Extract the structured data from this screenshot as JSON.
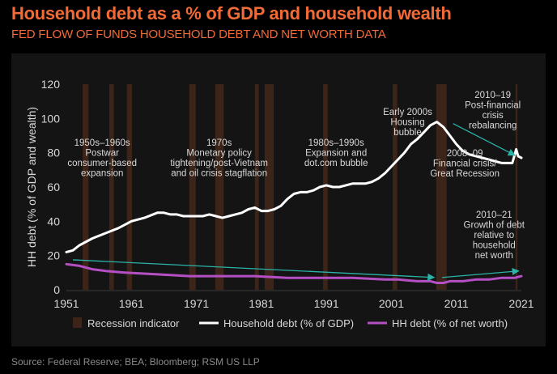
{
  "header": {
    "title": "Household debt as a % of GDP and household wealth",
    "subtitle": "FED FLOW OF FUNDS HOUSEHOLD DEBT AND NET WORTH DATA",
    "source": "Source: Federal Reserve; BEA; Bloomberg; RSM US LLP"
  },
  "colors": {
    "title": "#f26a36",
    "accent": "#f26a36",
    "recession": "#3d2418",
    "debt_gdp": "#ffffff",
    "debt_networth": "#b54fc4",
    "arrow": "#2bb3a8",
    "text": "#d8d8d8"
  },
  "chart_data": {
    "type": "line",
    "ylabel": "HH debt (% of GDP and wealth)",
    "xlim": [
      1951,
      2021
    ],
    "ylim": [
      0,
      120
    ],
    "x_ticks": [
      1951,
      1961,
      1971,
      1981,
      1991,
      2001,
      2011,
      2021
    ],
    "y_ticks": [
      0,
      20,
      40,
      60,
      80,
      100,
      120
    ],
    "legend": [
      "Recession indicator",
      "Household debt (% of GDP)",
      "HH debt (% of net worth)"
    ],
    "recessions": [
      [
        1953.5,
        1954.4
      ],
      [
        1957.6,
        1958.3
      ],
      [
        1960.3,
        1961.1
      ],
      [
        1969.9,
        1970.9
      ],
      [
        1973.9,
        1975.2
      ],
      [
        1980.0,
        1980.6
      ],
      [
        1981.5,
        1982.9
      ],
      [
        1990.5,
        1991.2
      ],
      [
        2001.2,
        2001.9
      ],
      [
        2007.9,
        2009.5
      ],
      [
        2020.1,
        2020.4
      ]
    ],
    "series": [
      {
        "name": "Household debt (% of GDP)",
        "x": [
          1951,
          1952,
          1953,
          1955,
          1957,
          1959,
          1960,
          1961,
          1963,
          1965,
          1966,
          1967,
          1968,
          1969,
          1970,
          1971,
          1972,
          1973,
          1974,
          1975,
          1976,
          1977,
          1978,
          1979,
          1980,
          1981,
          1982,
          1983,
          1984,
          1985,
          1986,
          1987,
          1988,
          1989,
          1990,
          1991,
          1992,
          1993,
          1994,
          1995,
          1996,
          1997,
          1998,
          1999,
          2000,
          2001,
          2002,
          2003,
          2004,
          2005,
          2006,
          2007,
          2008,
          2009,
          2010,
          2011,
          2012,
          2013,
          2014,
          2015,
          2016,
          2017,
          2018,
          2019,
          2019.6,
          2020.2,
          2020.5,
          2021
        ],
        "values": [
          22,
          23,
          26,
          30,
          33,
          36,
          38,
          40,
          42,
          45,
          45,
          44,
          44,
          43,
          43,
          43,
          43,
          44,
          43,
          42,
          43,
          44,
          45,
          47,
          48,
          46,
          46,
          47,
          49,
          53,
          56,
          57,
          57,
          58,
          60,
          61,
          60,
          60,
          61,
          62,
          62,
          62,
          63,
          65,
          68,
          72,
          76,
          80,
          85,
          88,
          92,
          96,
          98,
          95,
          90,
          85,
          81,
          79,
          78,
          77,
          76,
          75,
          74,
          74,
          74,
          82,
          78,
          77
        ]
      },
      {
        "name": "HH debt (% of net worth)",
        "x": [
          1951,
          1953,
          1955,
          1957,
          1960,
          1965,
          1970,
          1975,
          1980,
          1985,
          1990,
          1995,
          2000,
          2002,
          2005,
          2007,
          2008,
          2009,
          2010,
          2012,
          2014,
          2016,
          2018,
          2020,
          2021
        ],
        "values": [
          15,
          14,
          12,
          11,
          10,
          9,
          8,
          8,
          8,
          7,
          7,
          7,
          6,
          6,
          5,
          5,
          4,
          4,
          5,
          5,
          6,
          6,
          7,
          7,
          8
        ]
      }
    ],
    "annotations": [
      {
        "x": 1956.5,
        "y": 84,
        "lines": [
          "1950s–1960s",
          "Postwar",
          "consumer-based",
          "expansion"
        ]
      },
      {
        "x": 1974.5,
        "y": 84,
        "lines": [
          "1970s",
          "Monetary policy",
          "tightening/post-Vietnam",
          "and oil crisis stagflation"
        ]
      },
      {
        "x": 1992.5,
        "y": 84,
        "lines": [
          "1980s–1990s",
          "Expansion and",
          "dot.com bubble"
        ]
      },
      {
        "x": 2003.5,
        "y": 102,
        "lines": [
          "Early 2000s",
          "Housing",
          "bubble"
        ]
      },
      {
        "x": 2016.6,
        "y": 112,
        "lines": [
          "2010–19",
          "Post-financial",
          "crisis",
          "rebalancing"
        ]
      },
      {
        "x": 2012.3,
        "y": 78,
        "lines": [
          "2008–09",
          "Financial crisis/",
          "Great Recession"
        ]
      },
      {
        "x": 2016.8,
        "y": 42,
        "lines": [
          "2010–21",
          "Growth of debt",
          "relative to",
          "household",
          "net worth"
        ]
      }
    ],
    "arrows": [
      {
        "x1": 1952,
        "y1": 17.5,
        "x2": 2007.6,
        "y2": 7.2
      },
      {
        "x1": 2008.8,
        "y1": 7.2,
        "x2": 2020.6,
        "y2": 11
      },
      {
        "x1": 2010.5,
        "y1": 97,
        "x2": 2020,
        "y2": 78.5
      }
    ]
  }
}
